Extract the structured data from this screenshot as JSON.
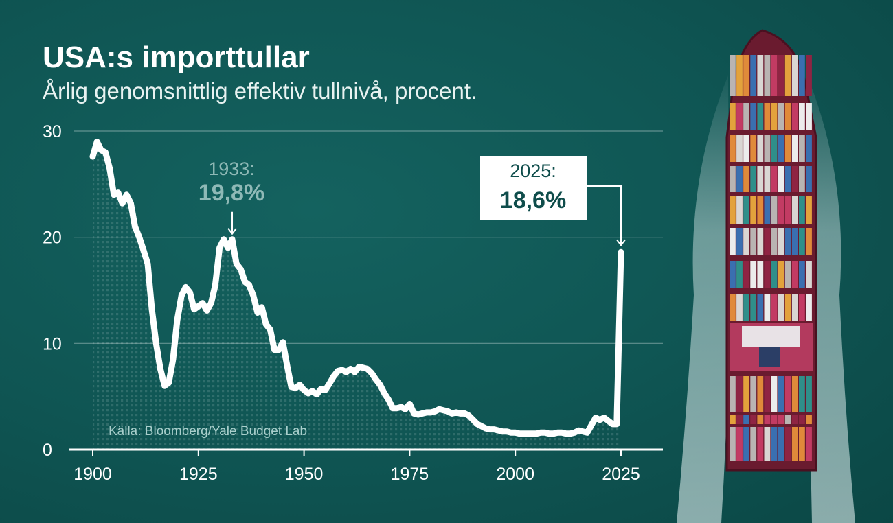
{
  "header": {
    "title": "USA:s importtullar",
    "subtitle": "Årlig genomsnittlig effektiv tullnivå, procent."
  },
  "source": "Källa: Bloomberg/Yale Budget Lab",
  "annotations": [
    {
      "year_label": "1933:",
      "value_label": "19,8%",
      "x": 1933,
      "y": 19.8
    },
    {
      "year_label": "2025:",
      "value_label": "18,6%",
      "x": 2025,
      "y": 18.6
    }
  ],
  "colors": {
    "line": "#ffffff",
    "background": "#0f5553",
    "annotation_muted": "#8fb9b6",
    "annotation_box": "#ffffff",
    "annotation_box_text": "#0f4d4b"
  },
  "chart_data": {
    "type": "line",
    "title": "USA:s importtullar",
    "subtitle": "Årlig genomsnittlig effektiv tullnivå, procent.",
    "xlabel": "",
    "ylabel": "",
    "xlim": [
      1900,
      2025
    ],
    "ylim": [
      0,
      30
    ],
    "x_ticks": [
      "1900",
      "1925",
      "1950",
      "1975",
      "2000",
      "2025"
    ],
    "y_ticks": [
      "0",
      "10",
      "20",
      "30"
    ],
    "grid": "horizontal",
    "series": [
      {
        "name": "",
        "x": [
          1900,
          1901,
          1902,
          1903,
          1904,
          1905,
          1906,
          1907,
          1908,
          1909,
          1910,
          1911,
          1912,
          1913,
          1914,
          1915,
          1916,
          1917,
          1918,
          1919,
          1920,
          1921,
          1922,
          1923,
          1924,
          1925,
          1926,
          1927,
          1928,
          1929,
          1930,
          1931,
          1932,
          1933,
          1934,
          1935,
          1936,
          1937,
          1938,
          1939,
          1940,
          1941,
          1942,
          1943,
          1944,
          1945,
          1946,
          1947,
          1948,
          1949,
          1950,
          1951,
          1952,
          1953,
          1954,
          1955,
          1956,
          1957,
          1958,
          1959,
          1960,
          1961,
          1962,
          1963,
          1964,
          1965,
          1966,
          1967,
          1968,
          1969,
          1970,
          1971,
          1972,
          1973,
          1974,
          1975,
          1976,
          1977,
          1978,
          1979,
          1980,
          1981,
          1982,
          1983,
          1984,
          1985,
          1986,
          1987,
          1988,
          1989,
          1990,
          1991,
          1992,
          1993,
          1994,
          1995,
          1996,
          1997,
          1998,
          1999,
          2000,
          2001,
          2002,
          2003,
          2004,
          2005,
          2006,
          2007,
          2008,
          2009,
          2010,
          2011,
          2012,
          2013,
          2014,
          2015,
          2016,
          2017,
          2018,
          2019,
          2020,
          2021,
          2022,
          2023,
          2024,
          2025
        ],
        "values": [
          27.6,
          29.0,
          28.2,
          28.0,
          26.5,
          24.0,
          24.2,
          23.2,
          24.0,
          23.2,
          21.0,
          20.0,
          18.8,
          17.5,
          13.2,
          10.0,
          7.6,
          6.0,
          6.3,
          8.5,
          12.2,
          14.5,
          15.3,
          14.8,
          13.2,
          13.5,
          13.8,
          13.1,
          13.8,
          15.5,
          19.0,
          19.8,
          19.0,
          19.8,
          17.5,
          17.0,
          15.8,
          15.5,
          14.5,
          12.9,
          13.4,
          11.8,
          11.3,
          9.4,
          9.4,
          10.1,
          7.9,
          5.9,
          5.8,
          6.1,
          5.6,
          5.3,
          5.5,
          5.2,
          5.7,
          5.6,
          6.2,
          6.9,
          7.4,
          7.5,
          7.3,
          7.6,
          7.3,
          7.8,
          7.7,
          7.6,
          7.2,
          6.6,
          6.1,
          5.3,
          4.7,
          3.9,
          3.9,
          4.0,
          3.8,
          4.3,
          3.4,
          3.3,
          3.4,
          3.5,
          3.5,
          3.6,
          3.8,
          3.7,
          3.6,
          3.4,
          3.5,
          3.4,
          3.4,
          3.2,
          2.8,
          2.4,
          2.2,
          2.0,
          1.9,
          1.9,
          1.8,
          1.7,
          1.7,
          1.6,
          1.6,
          1.5,
          1.5,
          1.5,
          1.5,
          1.5,
          1.6,
          1.6,
          1.5,
          1.5,
          1.6,
          1.6,
          1.5,
          1.5,
          1.6,
          1.8,
          1.7,
          1.6,
          2.3,
          3.0,
          2.8,
          3.0,
          2.7,
          2.4,
          2.4,
          18.6
        ]
      }
    ]
  }
}
